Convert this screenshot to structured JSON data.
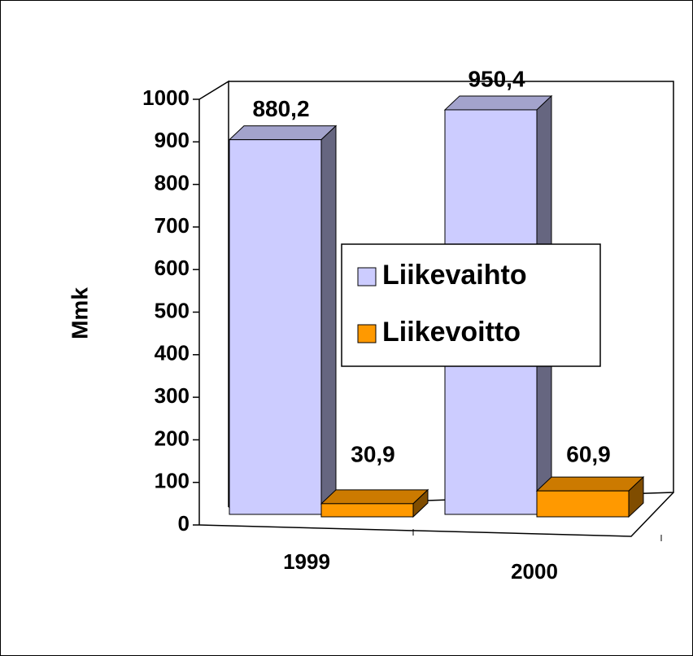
{
  "chart_data": {
    "type": "bar3d",
    "categories": [
      "1999",
      "2000"
    ],
    "series": [
      {
        "name": "Liikevaihto",
        "color": "#ccccff",
        "values": [
          880.2,
          950.4
        ],
        "value_labels": [
          "880,2",
          "950,4"
        ]
      },
      {
        "name": "Liikevoitto",
        "color": "#ff9900",
        "values": [
          30.9,
          60.9
        ],
        "value_labels": [
          "30,9",
          "60,9"
        ]
      }
    ],
    "ylabel": "Mmk",
    "ylim": [
      0,
      1000
    ],
    "yticks": [
      0,
      100,
      200,
      300,
      400,
      500,
      600,
      700,
      800,
      900,
      1000
    ]
  }
}
